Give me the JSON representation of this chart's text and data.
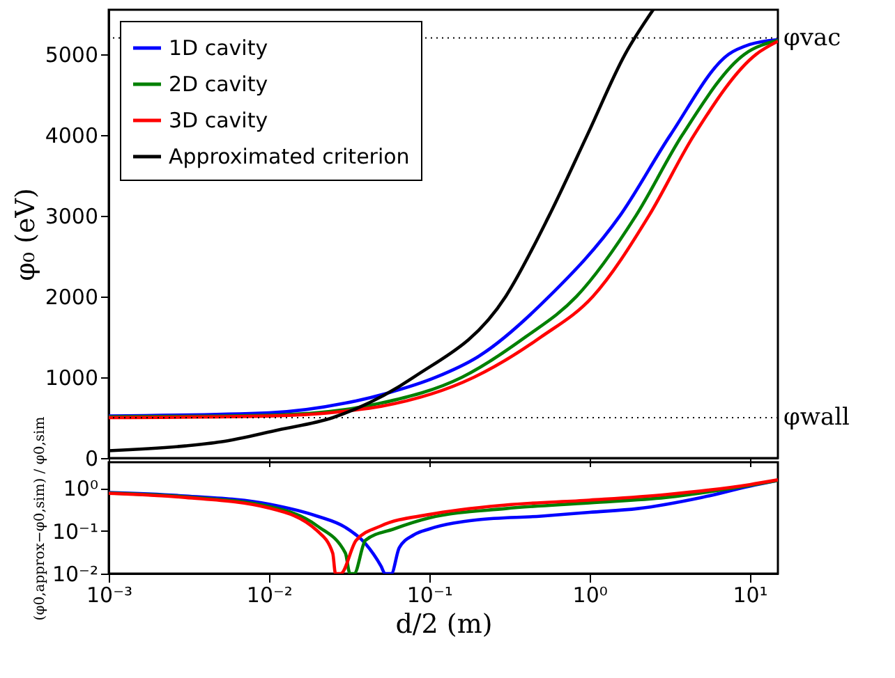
{
  "chart_data": [
    {
      "type": "line",
      "ylabel": "φ₀ (eV)",
      "log": "x",
      "grid": false,
      "legend": "top left",
      "tick_labels": "y",
      "line_style": "solid",
      "marker": "none",
      "xlim": [
        0.001,
        15
      ],
      "xticks": [
        {
          "value": 0.001,
          "label": null
        },
        {
          "value": 0.01,
          "label": null
        },
        {
          "value": 0.1,
          "label": null
        },
        {
          "value": 1,
          "label": null
        },
        {
          "value": 10,
          "label": null
        }
      ],
      "ylim": [
        0,
        5550
      ],
      "yticks": [
        0,
        1000,
        2000,
        3000,
        4000,
        5000
      ],
      "series": [
        {
          "name": "1D cavity",
          "color": "#0000ff",
          "x": [
            0.001,
            0.01,
            0.03,
            0.054,
            0.11,
            0.2,
            0.56,
            1.55,
            3.2,
            7.4,
            10,
            15
          ],
          "values": [
            520,
            560,
            680,
            800,
            1000,
            1250,
            2000,
            3000,
            4000,
            5000,
            5120,
            5180
          ]
        },
        {
          "name": "2D cavity",
          "color": "#008000",
          "x": [
            0.001,
            0.01,
            0.03,
            0.05,
            0.16,
            0.4,
            0.83,
            1.95,
            3.8,
            9.3,
            15
          ],
          "values": [
            510,
            530,
            600,
            680,
            1000,
            1500,
            2000,
            3000,
            4000,
            5000,
            5170
          ]
        },
        {
          "name": "3D cavity",
          "color": "#ff0000",
          "x": [
            0.001,
            0.01,
            0.03,
            0.05,
            0.19,
            0.5,
            1.05,
            2.35,
            4.5,
            11,
            15
          ],
          "values": [
            500,
            520,
            580,
            640,
            1000,
            1500,
            2000,
            3000,
            4000,
            5000,
            5160
          ]
        },
        {
          "name": "Approximated criterion",
          "color": "#000000",
          "x": [
            0.001,
            0.003,
            0.005,
            0.0115,
            0.025,
            0.08,
            0.3,
            0.56,
            0.97,
            1.67,
            2.5
          ],
          "values": [
            90,
            150,
            200,
            350,
            500,
            1000,
            2000,
            3000,
            4000,
            5000,
            5550
          ]
        }
      ],
      "ref_lines": [
        {
          "axis": "y",
          "value": 5200,
          "label": "φvac",
          "color": "#000000",
          "line_style": "dotted"
        },
        {
          "axis": "y",
          "value": 500,
          "label": "φwall",
          "color": "#000000",
          "line_style": "dotted"
        }
      ]
    },
    {
      "type": "line",
      "ylabel": "(φ0,approx−φ0,sim) / φ0,sim",
      "xlabel": "d/2 (m)",
      "log": "xy",
      "grid": false,
      "line_style": "solid",
      "marker": "none",
      "xlim": [
        0.001,
        15
      ],
      "xticks": [
        {
          "value": 0.001,
          "label": "10⁻³"
        },
        {
          "value": 0.01,
          "label": "10⁻²"
        },
        {
          "value": 0.1,
          "label": "10⁻¹"
        },
        {
          "value": 1,
          "label": "10⁰"
        },
        {
          "value": 10,
          "label": "10¹"
        }
      ],
      "ylim": [
        0.01,
        4
      ],
      "yticks": [
        {
          "value": 0.01,
          "label": "10⁻²"
        },
        {
          "value": 0.1,
          "label": "10⁻¹"
        },
        {
          "value": 1,
          "label": "10⁰"
        }
      ],
      "series": [
        {
          "color": "#0000ff",
          "x": [
            0.001,
            0.003,
            0.01,
            0.02,
            0.03,
            0.04,
            0.05,
            0.053,
            0.058,
            0.065,
            0.08,
            0.1,
            0.2,
            0.5,
            1,
            2,
            5,
            10,
            15
          ],
          "values": [
            0.78,
            0.65,
            0.42,
            0.22,
            0.12,
            0.05,
            0.015,
            0.01,
            0.01,
            0.04,
            0.08,
            0.11,
            0.18,
            0.22,
            0.27,
            0.33,
            0.6,
            1.1,
            1.5
          ]
        },
        {
          "color": "#008000",
          "x": [
            0.001,
            0.003,
            0.01,
            0.02,
            0.03,
            0.032,
            0.034,
            0.04,
            0.06,
            0.1,
            0.3,
            1,
            3,
            10,
            15
          ],
          "values": [
            0.76,
            0.62,
            0.37,
            0.13,
            0.03,
            0.01,
            0.01,
            0.06,
            0.11,
            0.2,
            0.33,
            0.45,
            0.6,
            1.15,
            1.5
          ]
        },
        {
          "color": "#ff0000",
          "x": [
            0.001,
            0.003,
            0.01,
            0.02,
            0.025,
            0.026,
            0.028,
            0.035,
            0.05,
            0.1,
            0.3,
            1,
            3,
            10,
            15
          ],
          "values": [
            0.75,
            0.6,
            0.34,
            0.1,
            0.03,
            0.01,
            0.01,
            0.06,
            0.13,
            0.24,
            0.4,
            0.52,
            0.7,
            1.2,
            1.55
          ]
        }
      ]
    }
  ]
}
